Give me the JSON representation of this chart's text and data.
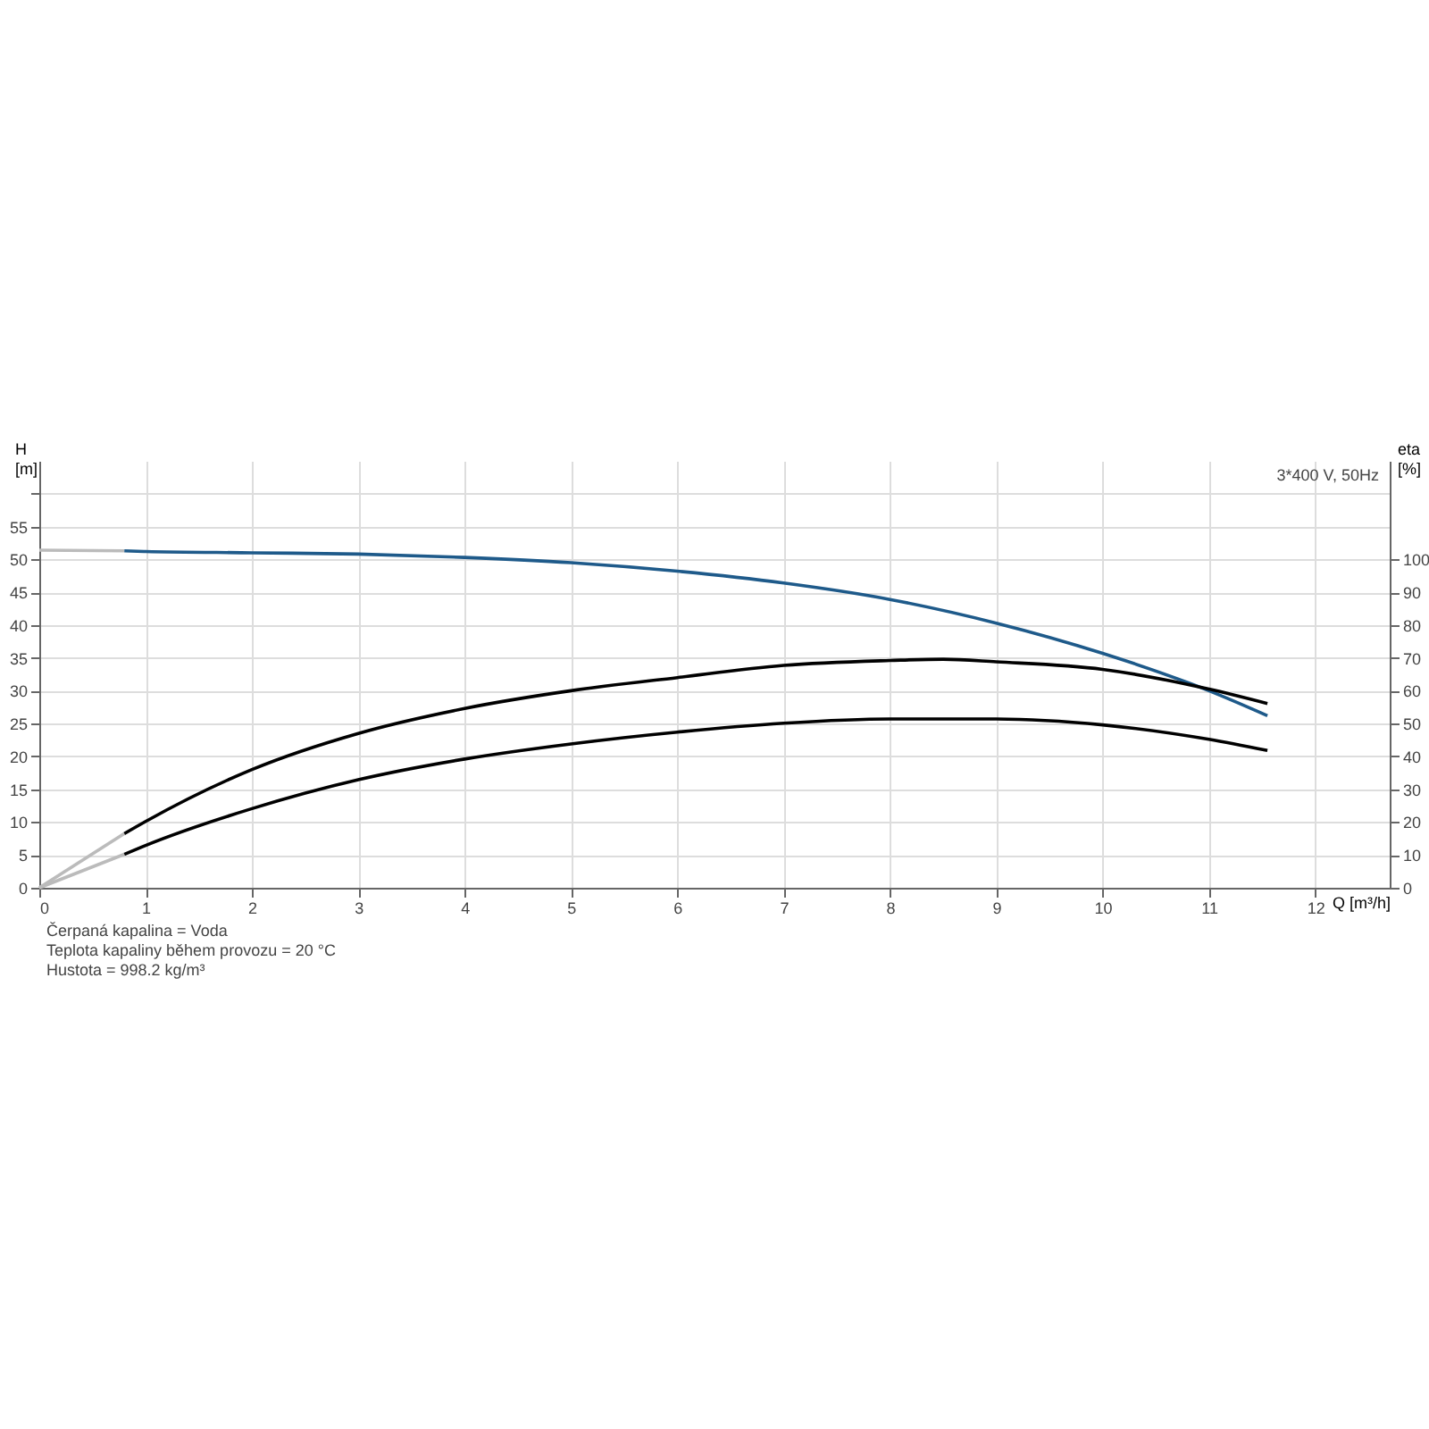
{
  "chart_data": {
    "type": "line",
    "xlabel": "Q [m³/h]",
    "ylabel": "H [m]",
    "y2label": "eta [%]",
    "xlim": [
      0,
      12.7
    ],
    "xticks": [
      0,
      1,
      2,
      3,
      4,
      5,
      6,
      7,
      8,
      9,
      10,
      11,
      12
    ],
    "ylim": [
      0,
      65
    ],
    "yticks": [
      0,
      5,
      10,
      15,
      20,
      25,
      30,
      35,
      40,
      45,
      50,
      55,
      {
        "value": 60,
        "label": null
      }
    ],
    "y2lim": [
      0,
      130
    ],
    "y2ticks": [
      0,
      10,
      20,
      30,
      40,
      50,
      60,
      70,
      80,
      90,
      100
    ],
    "grid": true,
    "marker": "none",
    "series": [
      {
        "color": "#bbbbbb",
        "x": [
          0,
          0.8
        ],
        "values": [
          51.4,
          51.3
        ]
      },
      {
        "color": "#1e5a8a",
        "x": [
          0.8,
          1,
          2,
          3,
          4,
          5,
          6,
          7,
          8,
          9,
          10,
          11,
          11.55
        ],
        "values": [
          51.3,
          51.2,
          51.0,
          50.8,
          50.3,
          49.5,
          48.2,
          46.4,
          43.9,
          40.3,
          35.7,
          30.0,
          26.2
        ]
      },
      {
        "color": "#bbbbbb",
        "axis": "y2",
        "x": [
          0,
          0.8
        ],
        "values": [
          0,
          16.5
        ]
      },
      {
        "color": "#000000",
        "axis": "y2",
        "x": [
          0.8,
          1,
          2,
          3,
          4,
          5,
          6,
          7,
          8,
          8.5,
          9,
          10,
          11,
          11.55
        ],
        "values": [
          16.5,
          20.2,
          36,
          47,
          54.6,
          60,
          64,
          67.7,
          69.2,
          69.6,
          68.8,
          66.5,
          60.5,
          56.1
        ]
      },
      {
        "color": "#bbbbbb",
        "axis": "y2",
        "x": [
          0,
          0.8
        ],
        "values": [
          0,
          10.2
        ]
      },
      {
        "color": "#000000",
        "axis": "y2",
        "x": [
          0.8,
          1,
          2,
          3,
          4,
          5,
          6,
          7,
          8,
          9,
          10,
          11,
          11.55
        ],
        "values": [
          10.2,
          12.9,
          24.1,
          32.9,
          39.2,
          43.8,
          47.4,
          50.1,
          51.4,
          51.4,
          49.6,
          45.2,
          41.8
        ]
      }
    ],
    "annotations": [
      "3*400 V, 50Hz",
      "Čerpaná kapalina = Voda",
      "Teplota kapaliny během provozu = 20 °C",
      "Hustota = 998.2 kg/m³"
    ]
  }
}
